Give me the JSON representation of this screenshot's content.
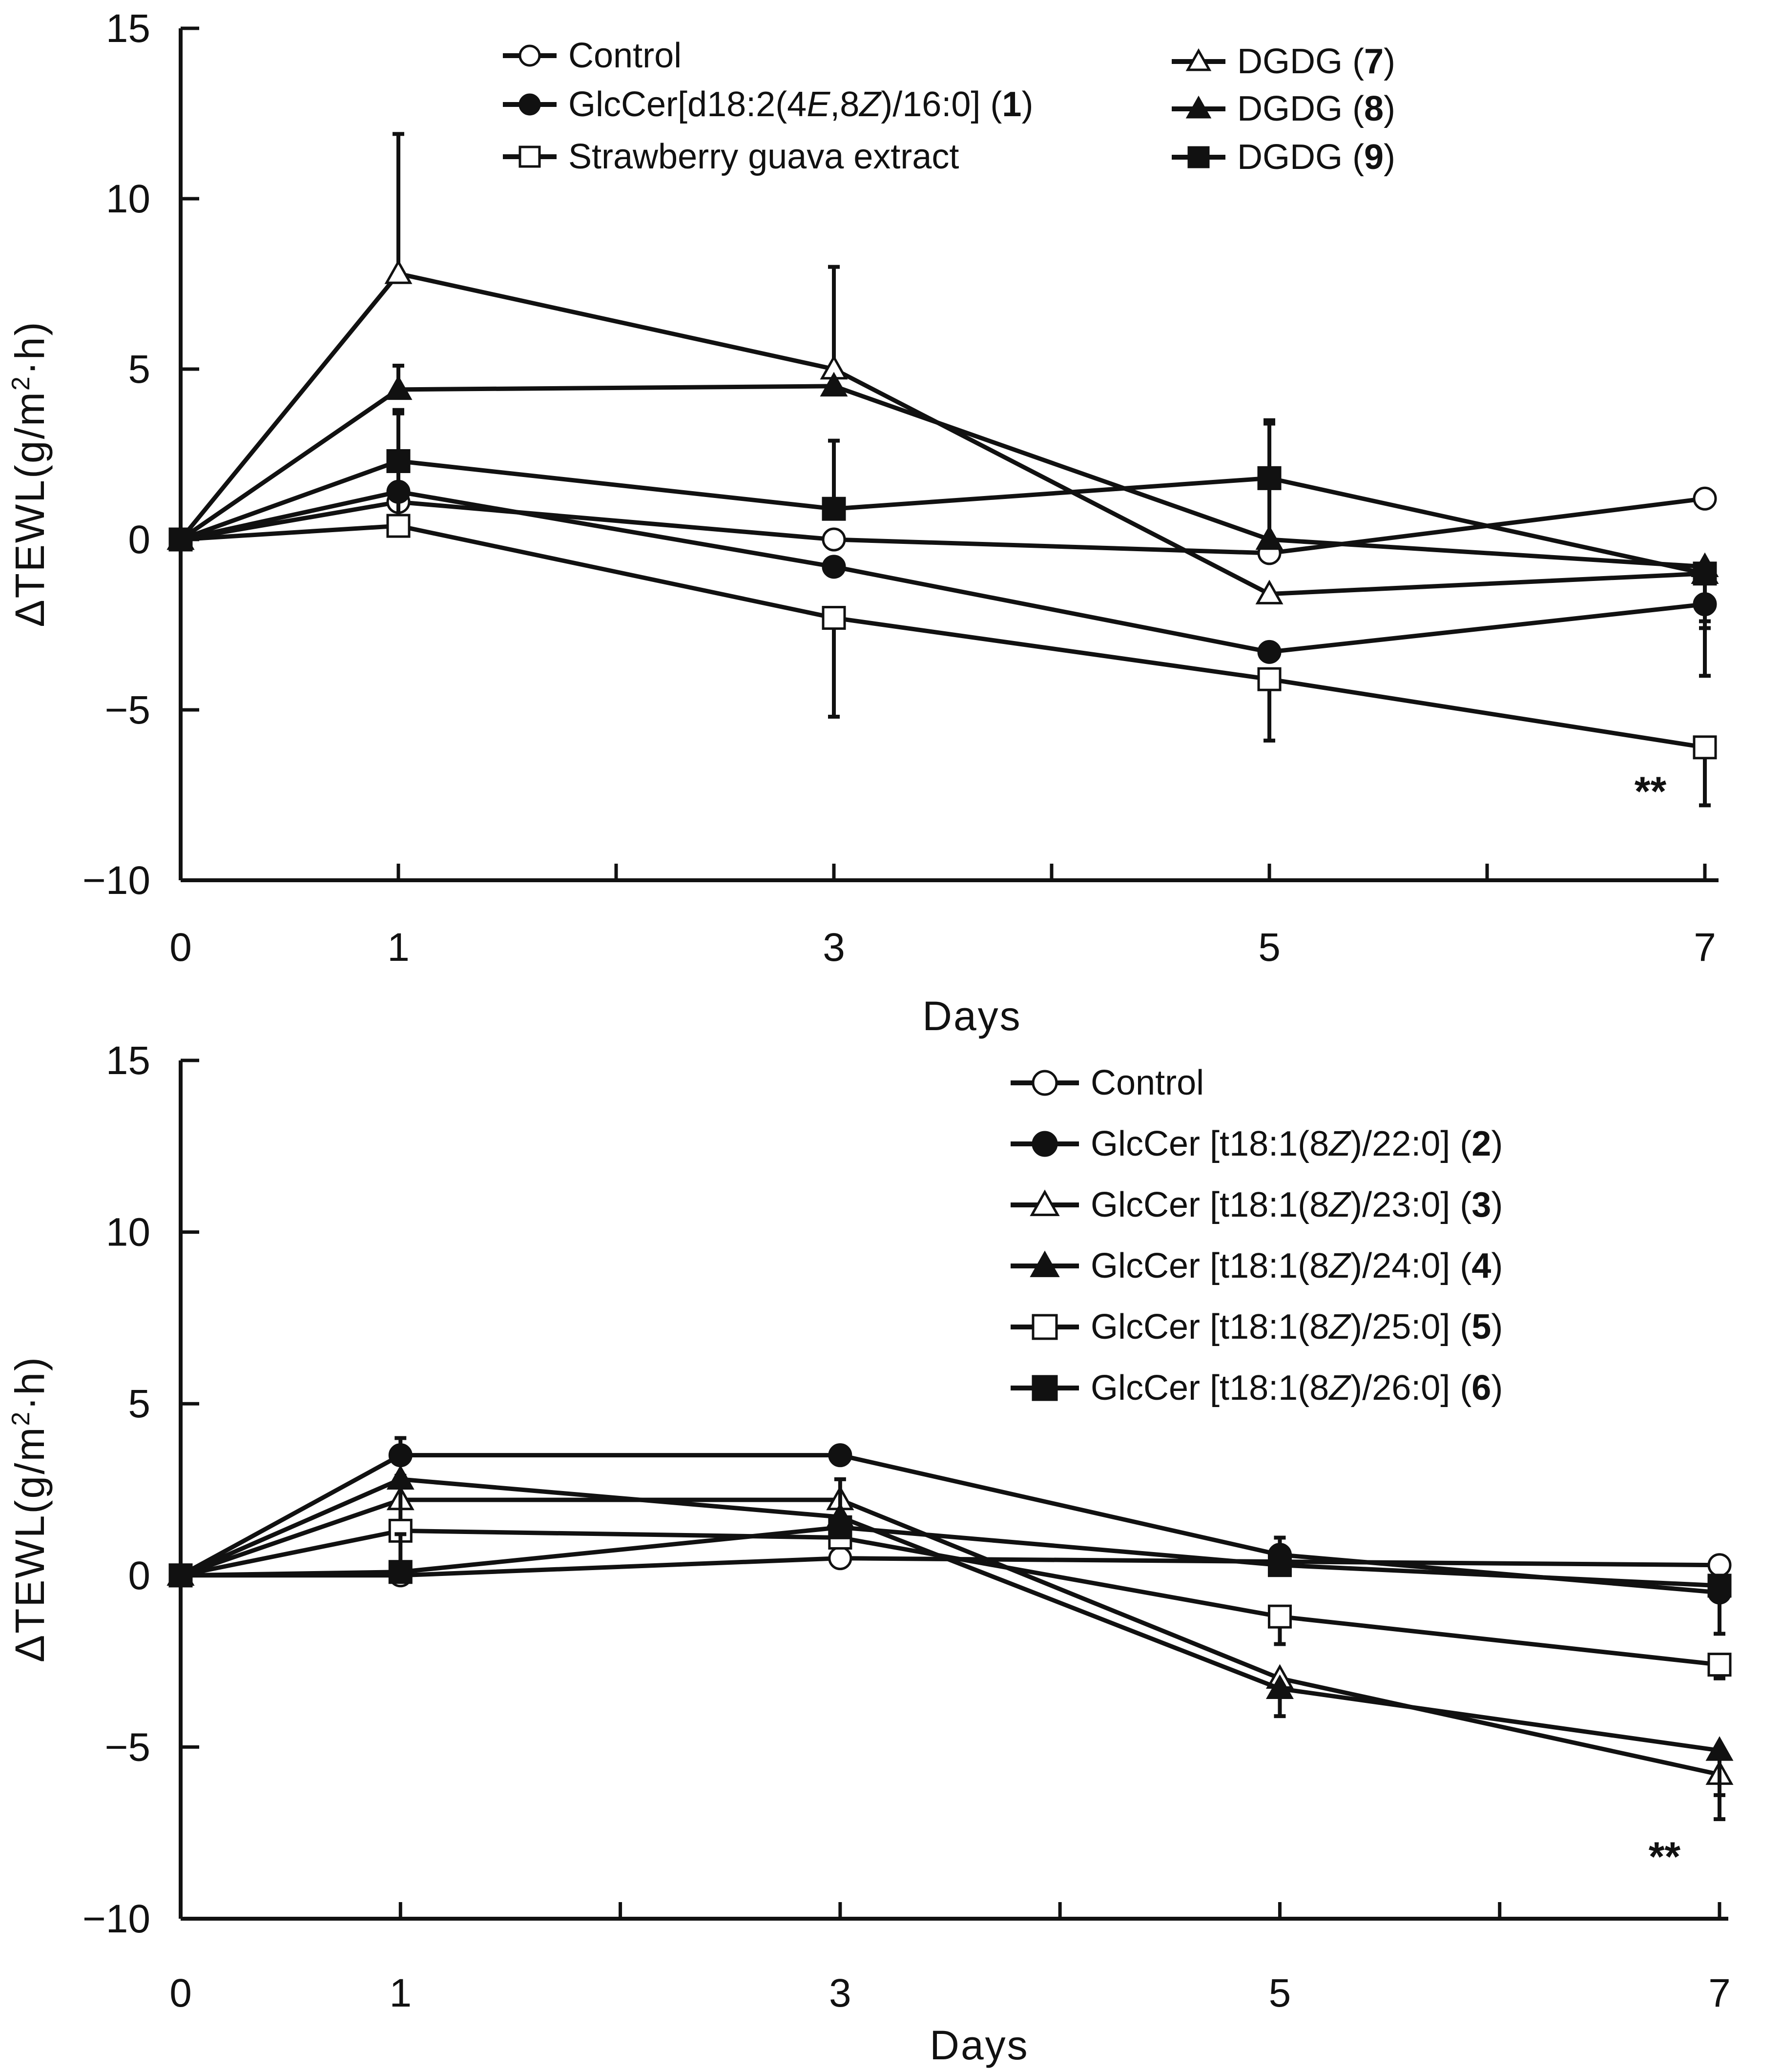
{
  "figure": {
    "colors": {
      "ink": "#111111",
      "background": "#ffffff"
    },
    "marker_shapes": {
      "circle-open": "open circle",
      "circle-filled": "filled circle",
      "triangle-open": "open triangle",
      "triangle-filled": "filled triangle",
      "square-open": "open square",
      "square-filled": "filled square"
    }
  },
  "chart_data": [
    {
      "type": "line",
      "panel": "top",
      "xlabel": "Days",
      "ylabel": "ΔTEWL(g/m²·h)",
      "ylabel_parts": {
        "main": "ΔTEWL(g/m",
        "sup": "2",
        "tail": "·h)"
      },
      "x_ticks": [
        0,
        1,
        3,
        5,
        7
      ],
      "x_minor_ticks": [
        2,
        4,
        6
      ],
      "xlim": [
        0,
        7
      ],
      "y_ticks": [
        15,
        10,
        5,
        0,
        -5,
        -10
      ],
      "y_tick_labels": [
        "15",
        "10",
        "5",
        "0",
        "−5",
        "−10"
      ],
      "ylim": [
        -10,
        15
      ],
      "grid": false,
      "legend_position": "top",
      "annotation": {
        "text": "**",
        "x": 6.75,
        "y": -7.8
      },
      "series": [
        {
          "name": "Control",
          "legend": {
            "prefix": "Control"
          },
          "marker": "circle-open",
          "x": [
            0,
            1,
            3,
            5,
            7
          ],
          "values": [
            0,
            1.1,
            0,
            -0.4,
            1.2
          ],
          "errors": [
            0,
            0,
            0,
            0,
            0
          ]
        },
        {
          "name": "GlcCer[d18:2(4E,8Z)/16:0] (1)",
          "legend": {
            "prefix": "GlcCer[d18:2(4",
            "i1": "E",
            "mid": ",8",
            "i2": "Z",
            "suffix": ")/16:0] (",
            "num": "1",
            "close": ")"
          },
          "marker": "circle-filled",
          "x": [
            0,
            1,
            3,
            5,
            7
          ],
          "values": [
            0,
            1.4,
            -0.8,
            -3.3,
            -1.9
          ],
          "errors": [
            0,
            0,
            0,
            0,
            0.5
          ]
        },
        {
          "name": "Strawberry guava extract",
          "legend": {
            "prefix": "Strawberry guava extract"
          },
          "marker": "square-open",
          "x": [
            0,
            1,
            3,
            5,
            7
          ],
          "values": [
            0,
            0.4,
            -2.3,
            -4.1,
            -6.1
          ],
          "errors": [
            0,
            3.4,
            2.9,
            1.8,
            1.7
          ]
        },
        {
          "name": "DGDG (7)",
          "legend": {
            "prefix": "DGDG (",
            "num": "7",
            "close": ")"
          },
          "marker": "triangle-open",
          "x": [
            0,
            1,
            3,
            5,
            7
          ],
          "values": [
            0,
            7.8,
            5.0,
            -1.6,
            -1.0
          ],
          "errors": [
            0,
            4.1,
            3.0,
            0,
            0
          ]
        },
        {
          "name": "DGDG (8)",
          "legend": {
            "prefix": "DGDG (",
            "num": "8",
            "close": ")"
          },
          "marker": "triangle-filled",
          "x": [
            0,
            1,
            3,
            5,
            7
          ],
          "values": [
            0,
            4.4,
            4.5,
            0,
            -0.8
          ],
          "errors": [
            0,
            0.7,
            0,
            3.4,
            3.2
          ]
        },
        {
          "name": "DGDG (9)",
          "legend": {
            "prefix": "DGDG (",
            "num": "9",
            "close": ")"
          },
          "marker": "square-filled",
          "x": [
            0,
            1,
            3,
            5,
            7
          ],
          "values": [
            0,
            2.3,
            0.9,
            1.8,
            -1.0
          ],
          "errors": [
            0,
            1.4,
            2.0,
            1.7,
            1.6
          ]
        }
      ]
    },
    {
      "type": "line",
      "panel": "bottom",
      "xlabel": "Days",
      "ylabel": "ΔTEWL(g/m²·h)",
      "ylabel_parts": {
        "main": "ΔTEWL(g/m",
        "sup": "2",
        "tail": "·h)"
      },
      "x_ticks": [
        0,
        1,
        3,
        5,
        7
      ],
      "x_minor_ticks": [
        2,
        4,
        6
      ],
      "xlim": [
        0,
        7
      ],
      "y_ticks": [
        15,
        10,
        5,
        0,
        -5,
        -10
      ],
      "y_tick_labels": [
        "15",
        "10",
        "5",
        "0",
        "−5",
        "−10"
      ],
      "ylim": [
        -10,
        15
      ],
      "grid": false,
      "legend_position": "top-right",
      "annotation": {
        "text": "**",
        "x": 6.75,
        "y": -8.6
      },
      "series": [
        {
          "name": "Control",
          "legend": {
            "prefix": "Control"
          },
          "marker": "circle-open",
          "x": [
            0,
            1,
            3,
            5,
            7
          ],
          "values": [
            0,
            0,
            0.5,
            0.4,
            0.3
          ],
          "errors": [
            0,
            0,
            0,
            0,
            0
          ]
        },
        {
          "name": "GlcCer [t18:1(8Z)/22:0] (2)",
          "legend": {
            "prefix": "GlcCer [t18:1(8",
            "i1": "Z",
            "suffix": ")/22:0] (",
            "num": "2",
            "close": ")"
          },
          "marker": "circle-filled",
          "x": [
            0,
            1,
            3,
            5,
            7
          ],
          "values": [
            0,
            3.5,
            3.5,
            0.6,
            -0.5
          ],
          "errors": [
            0,
            0.5,
            0,
            0,
            0
          ]
        },
        {
          "name": "GlcCer [t18:1(8Z)/23:0] (3)",
          "legend": {
            "prefix": "GlcCer [t18:1(8",
            "i1": "Z",
            "suffix": ")/23:0] (",
            "num": "3",
            "close": ")"
          },
          "marker": "triangle-open",
          "x": [
            0,
            1,
            3,
            5,
            7
          ],
          "values": [
            0,
            2.2,
            2.2,
            -3.0,
            -5.8
          ],
          "errors": [
            0,
            0,
            0,
            0,
            1.3
          ]
        },
        {
          "name": "GlcCer [t18:1(8Z)/24:0] (4)",
          "legend": {
            "prefix": "GlcCer [t18:1(8",
            "i1": "Z",
            "suffix": ")/24:0] (",
            "num": "4",
            "close": ")"
          },
          "marker": "triangle-filled",
          "x": [
            0,
            1,
            3,
            5,
            7
          ],
          "values": [
            0,
            2.8,
            1.7,
            -3.3,
            -5.1
          ],
          "errors": [
            0,
            0,
            0,
            0.8,
            1.3
          ]
        },
        {
          "name": "GlcCer [t18:1(8Z)/25:0] (5)",
          "legend": {
            "prefix": "GlcCer [t18:1(8",
            "i1": "Z",
            "suffix": ")/25:0] (",
            "num": "5",
            "close": ")"
          },
          "marker": "square-open",
          "x": [
            0,
            1,
            3,
            5,
            7
          ],
          "values": [
            0,
            1.3,
            1.1,
            -1.2,
            -2.6
          ],
          "errors": [
            0,
            1.6,
            1.7,
            0.8,
            0.4
          ]
        },
        {
          "name": "GlcCer [t18:1(8Z)/26:0] (6)",
          "legend": {
            "prefix": "GlcCer [t18:1(8",
            "i1": "Z",
            "suffix": ")/26:0] (",
            "num": "6",
            "close": ")"
          },
          "marker": "square-filled",
          "x": [
            0,
            1,
            3,
            5,
            7
          ],
          "values": [
            0,
            0.1,
            1.4,
            0.3,
            -0.3
          ],
          "errors": [
            0,
            1.1,
            0,
            0.8,
            1.4
          ]
        }
      ]
    }
  ]
}
